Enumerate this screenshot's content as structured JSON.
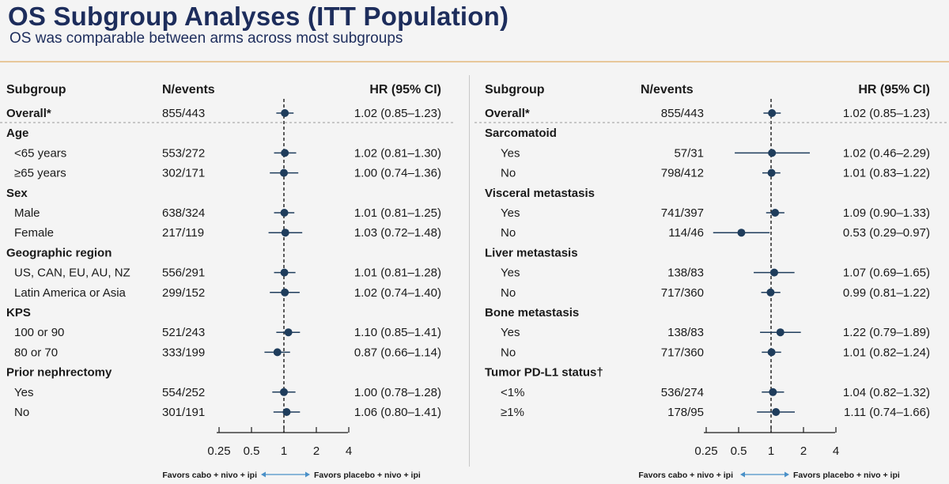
{
  "slide": {
    "title": "OS Subgroup Analyses (ITT Population)",
    "subtitle": "OS was comparable between arms across most subgroups"
  },
  "chart_data": [
    {
      "type": "forest",
      "columns": [
        "Subgroup",
        "N/events",
        "HR (95% CI)"
      ],
      "x_scale": "log2",
      "xlim": [
        0.25,
        4
      ],
      "xticks": [
        "0.25",
        "0.5",
        "1",
        "2",
        "4"
      ],
      "reference_line": 1,
      "favors_left": "Favors cabo + nivo + ipi",
      "favors_right": "Favors placebo + nivo + ipi",
      "rows": [
        {
          "label": "Overall*",
          "kind": "overall",
          "n": "855/443",
          "hr": 1.02,
          "lo": 0.85,
          "hi": 1.23,
          "hr_text": "1.02 (0.85–1.23)"
        },
        {
          "label": "Age",
          "kind": "group"
        },
        {
          "label": "<65 years",
          "kind": "item",
          "n": "553/272",
          "hr": 1.02,
          "lo": 0.81,
          "hi": 1.3,
          "hr_text": "1.02 (0.81–1.30)"
        },
        {
          "label": "≥65 years",
          "kind": "item",
          "n": "302/171",
          "hr": 1.0,
          "lo": 0.74,
          "hi": 1.36,
          "hr_text": "1.00 (0.74–1.36)"
        },
        {
          "label": "Sex",
          "kind": "group"
        },
        {
          "label": "Male",
          "kind": "item",
          "n": "638/324",
          "hr": 1.01,
          "lo": 0.81,
          "hi": 1.25,
          "hr_text": "1.01 (0.81–1.25)"
        },
        {
          "label": "Female",
          "kind": "item",
          "n": "217/119",
          "hr": 1.03,
          "lo": 0.72,
          "hi": 1.48,
          "hr_text": "1.03 (0.72–1.48)"
        },
        {
          "label": "Geographic region",
          "kind": "group"
        },
        {
          "label": "US, CAN, EU, AU, NZ",
          "kind": "item",
          "n": "556/291",
          "hr": 1.01,
          "lo": 0.81,
          "hi": 1.28,
          "hr_text": "1.01 (0.81–1.28)"
        },
        {
          "label": "Latin America or Asia",
          "kind": "item",
          "n": "299/152",
          "hr": 1.02,
          "lo": 0.74,
          "hi": 1.4,
          "hr_text": "1.02 (0.74–1.40)"
        },
        {
          "label": "KPS",
          "kind": "group"
        },
        {
          "label": "100 or 90",
          "kind": "item",
          "n": "521/243",
          "hr": 1.1,
          "lo": 0.85,
          "hi": 1.41,
          "hr_text": "1.10 (0.85–1.41)"
        },
        {
          "label": "80 or 70",
          "kind": "item",
          "n": "333/199",
          "hr": 0.87,
          "lo": 0.66,
          "hi": 1.14,
          "hr_text": "0.87 (0.66–1.14)"
        },
        {
          "label": "Prior nephrectomy",
          "kind": "group"
        },
        {
          "label": "Yes",
          "kind": "item",
          "n": "554/252",
          "hr": 1.0,
          "lo": 0.78,
          "hi": 1.28,
          "hr_text": "1.00 (0.78–1.28)"
        },
        {
          "label": "No",
          "kind": "item",
          "n": "301/191",
          "hr": 1.06,
          "lo": 0.8,
          "hi": 1.41,
          "hr_text": "1.06 (0.80–1.41)"
        }
      ]
    },
    {
      "type": "forest",
      "columns": [
        "Subgroup",
        "N/events",
        "HR (95% CI)"
      ],
      "x_scale": "log2",
      "xlim": [
        0.25,
        4
      ],
      "xticks": [
        "0.25",
        "0.5",
        "1",
        "2",
        "4"
      ],
      "reference_line": 1,
      "favors_left": "Favors cabo + nivo + ipi",
      "favors_right": "Favors placebo + nivo + ipi",
      "rows": [
        {
          "label": "Overall*",
          "kind": "overall",
          "n": "855/443",
          "hr": 1.02,
          "lo": 0.85,
          "hi": 1.23,
          "hr_text": "1.02 (0.85–1.23)"
        },
        {
          "label": "Sarcomatoid",
          "kind": "group"
        },
        {
          "label": "Yes",
          "kind": "item",
          "n": "57/31",
          "hr": 1.02,
          "lo": 0.46,
          "hi": 2.29,
          "hr_text": "1.02 (0.46–2.29)"
        },
        {
          "label": "No",
          "kind": "item",
          "n": "798/412",
          "hr": 1.01,
          "lo": 0.83,
          "hi": 1.22,
          "hr_text": "1.01 (0.83–1.22)"
        },
        {
          "label": "Visceral metastasis",
          "kind": "group"
        },
        {
          "label": "Yes",
          "kind": "item",
          "n": "741/397",
          "hr": 1.09,
          "lo": 0.9,
          "hi": 1.33,
          "hr_text": "1.09 (0.90–1.33)"
        },
        {
          "label": "No",
          "kind": "item",
          "n": "114/46",
          "hr": 0.53,
          "lo": 0.29,
          "hi": 0.97,
          "hr_text": "0.53 (0.29–0.97)"
        },
        {
          "label": "Liver metastasis",
          "kind": "group"
        },
        {
          "label": "Yes",
          "kind": "item",
          "n": "138/83",
          "hr": 1.07,
          "lo": 0.69,
          "hi": 1.65,
          "hr_text": "1.07 (0.69–1.65)"
        },
        {
          "label": "No",
          "kind": "item",
          "n": "717/360",
          "hr": 0.99,
          "lo": 0.81,
          "hi": 1.22,
          "hr_text": "0.99 (0.81–1.22)"
        },
        {
          "label": "Bone metastasis",
          "kind": "group"
        },
        {
          "label": "Yes",
          "kind": "item",
          "n": "138/83",
          "hr": 1.22,
          "lo": 0.79,
          "hi": 1.89,
          "hr_text": "1.22 (0.79–1.89)"
        },
        {
          "label": "No",
          "kind": "item",
          "n": "717/360",
          "hr": 1.01,
          "lo": 0.82,
          "hi": 1.24,
          "hr_text": "1.01 (0.82–1.24)"
        },
        {
          "label": "Tumor PD-L1 status†",
          "kind": "group"
        },
        {
          "label": "<1%",
          "kind": "item",
          "n": "536/274",
          "hr": 1.04,
          "lo": 0.82,
          "hi": 1.32,
          "hr_text": "1.04 (0.82–1.32)"
        },
        {
          "label": "≥1%",
          "kind": "item",
          "n": "178/95",
          "hr": 1.11,
          "lo": 0.74,
          "hi": 1.66,
          "hr_text": "1.11 (0.74–1.66)"
        }
      ]
    }
  ],
  "colors": {
    "title": "#1d2d5c",
    "marker": "#1f3d5c",
    "arrow": "#4a90c8",
    "rule": "#e8c89a"
  }
}
